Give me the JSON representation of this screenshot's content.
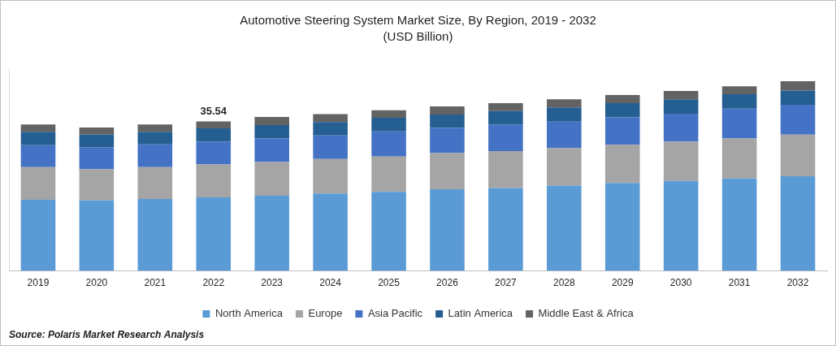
{
  "chart_data": {
    "type": "bar",
    "title": "Automotive Steering System Market Size, By Region, 2019 - 2032",
    "subtitle": "(USD Billion)",
    "source": "Source: Polaris Market Research Analysis",
    "categories": [
      "2019",
      "2020",
      "2021",
      "2022",
      "2023",
      "2024",
      "2025",
      "2026",
      "2027",
      "2028",
      "2029",
      "2030",
      "2031",
      "2032"
    ],
    "series": [
      {
        "name": "North America",
        "color": "#5b9bd5",
        "values": [
          16.9,
          16.8,
          17.1,
          17.5,
          17.9,
          18.4,
          18.8,
          19.4,
          19.7,
          20.3,
          20.9,
          21.4,
          22.0,
          22.5
        ]
      },
      {
        "name": "Europe",
        "color": "#a5a5a5",
        "values": [
          7.8,
          7.4,
          7.6,
          7.8,
          8.0,
          8.2,
          8.4,
          8.6,
          8.8,
          8.9,
          9.1,
          9.3,
          9.5,
          9.9
        ]
      },
      {
        "name": "Asia Pacific",
        "color": "#4472c4",
        "values": [
          5.2,
          5.2,
          5.4,
          5.4,
          5.6,
          5.6,
          6.0,
          6.0,
          6.3,
          6.3,
          6.5,
          6.7,
          7.1,
          7.1
        ]
      },
      {
        "name": "Latin America",
        "color": "#255e91",
        "values": [
          3.2,
          3.0,
          3.0,
          3.2,
          3.2,
          3.2,
          3.2,
          3.2,
          3.2,
          3.4,
          3.4,
          3.4,
          3.4,
          3.4
        ]
      },
      {
        "name": "Middle East & Africa",
        "color": "#636363",
        "values": [
          1.7,
          1.7,
          1.7,
          1.64,
          1.9,
          1.9,
          1.8,
          1.9,
          1.9,
          1.9,
          1.9,
          2.0,
          1.9,
          2.2
        ]
      }
    ],
    "annotations": [
      {
        "category": "2022",
        "value": 35.54,
        "label": "35.54"
      }
    ],
    "ylim": [
      0,
      48
    ],
    "stacked": true,
    "grid": false,
    "legend": "bottom",
    "tick_labels": "x"
  }
}
